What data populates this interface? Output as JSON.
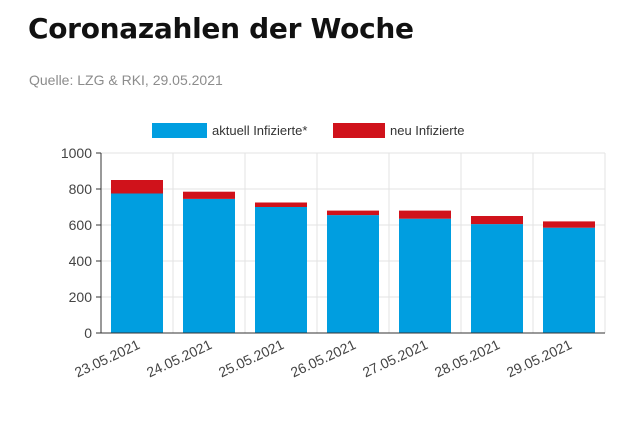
{
  "header": {
    "title": "Coronazahlen der Woche",
    "source": "Quelle: LZG & RKI, 29.05.2021"
  },
  "chart_data": {
    "type": "bar",
    "stacked": true,
    "categories": [
      "23.05.2021",
      "24.05.2021",
      "25.05.2021",
      "26.05.2021",
      "27.05.2021",
      "28.05.2021",
      "29.05.2021"
    ],
    "series": [
      {
        "name": "aktuell Infizierte*",
        "color": "#009ee0",
        "values": [
          775,
          745,
          700,
          655,
          635,
          605,
          585
        ]
      },
      {
        "name": "neu Infizierte",
        "color": "#d0121b",
        "values": [
          75,
          40,
          25,
          25,
          45,
          45,
          35
        ]
      }
    ],
    "ylim": [
      0,
      1000
    ],
    "yticks": [
      0,
      200,
      400,
      600,
      800,
      1000
    ],
    "grid": true,
    "legend_position": "top-center"
  }
}
